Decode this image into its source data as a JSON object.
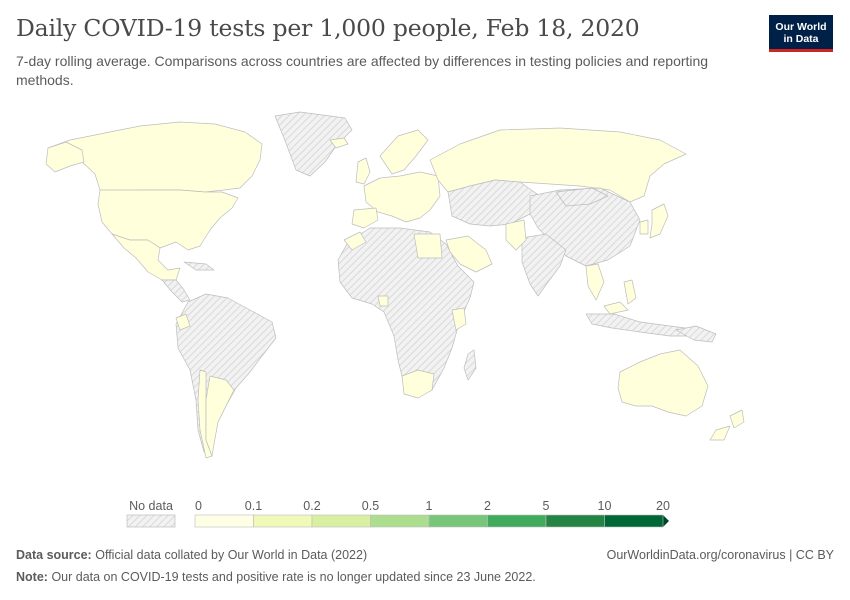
{
  "title": "Daily COVID-19 tests per 1,000 people, Feb 18, 2020",
  "subtitle": "7-day rolling average. Comparisons across countries are affected by differences in testing policies and reporting methods.",
  "logo": {
    "line1": "Our World",
    "line2": "in Data",
    "bg_color": "#002147",
    "accent_color": "#ce261e"
  },
  "legend": {
    "no_data_label": "No data",
    "bins": [
      {
        "label": "0",
        "color": "#ffffe6"
      },
      {
        "label": "0.1",
        "color": "#f1f9b8"
      },
      {
        "label": "0.2",
        "color": "#d9f0a3"
      },
      {
        "label": "0.5",
        "color": "#addd8e"
      },
      {
        "label": "1",
        "color": "#78c679"
      },
      {
        "label": "2",
        "color": "#41ab5d"
      },
      {
        "label": "5",
        "color": "#238443"
      },
      {
        "label": "10",
        "color": "#006837"
      },
      {
        "label": "20",
        "color": "#004529"
      }
    ]
  },
  "map_colors": {
    "has_data_fill": "#ffffdc",
    "no_data_fill": "#ebebeb",
    "border": "#bdbdbd"
  },
  "footer": {
    "source_label": "Data source:",
    "source_text": "Official data collated by Our World in Data (2022)",
    "credit": "OurWorldinData.org/coronavirus | CC BY",
    "note_label": "Note:",
    "note_text": "Our data on COVID-19 tests and positive rate is no longer updated since 23 June 2022."
  }
}
